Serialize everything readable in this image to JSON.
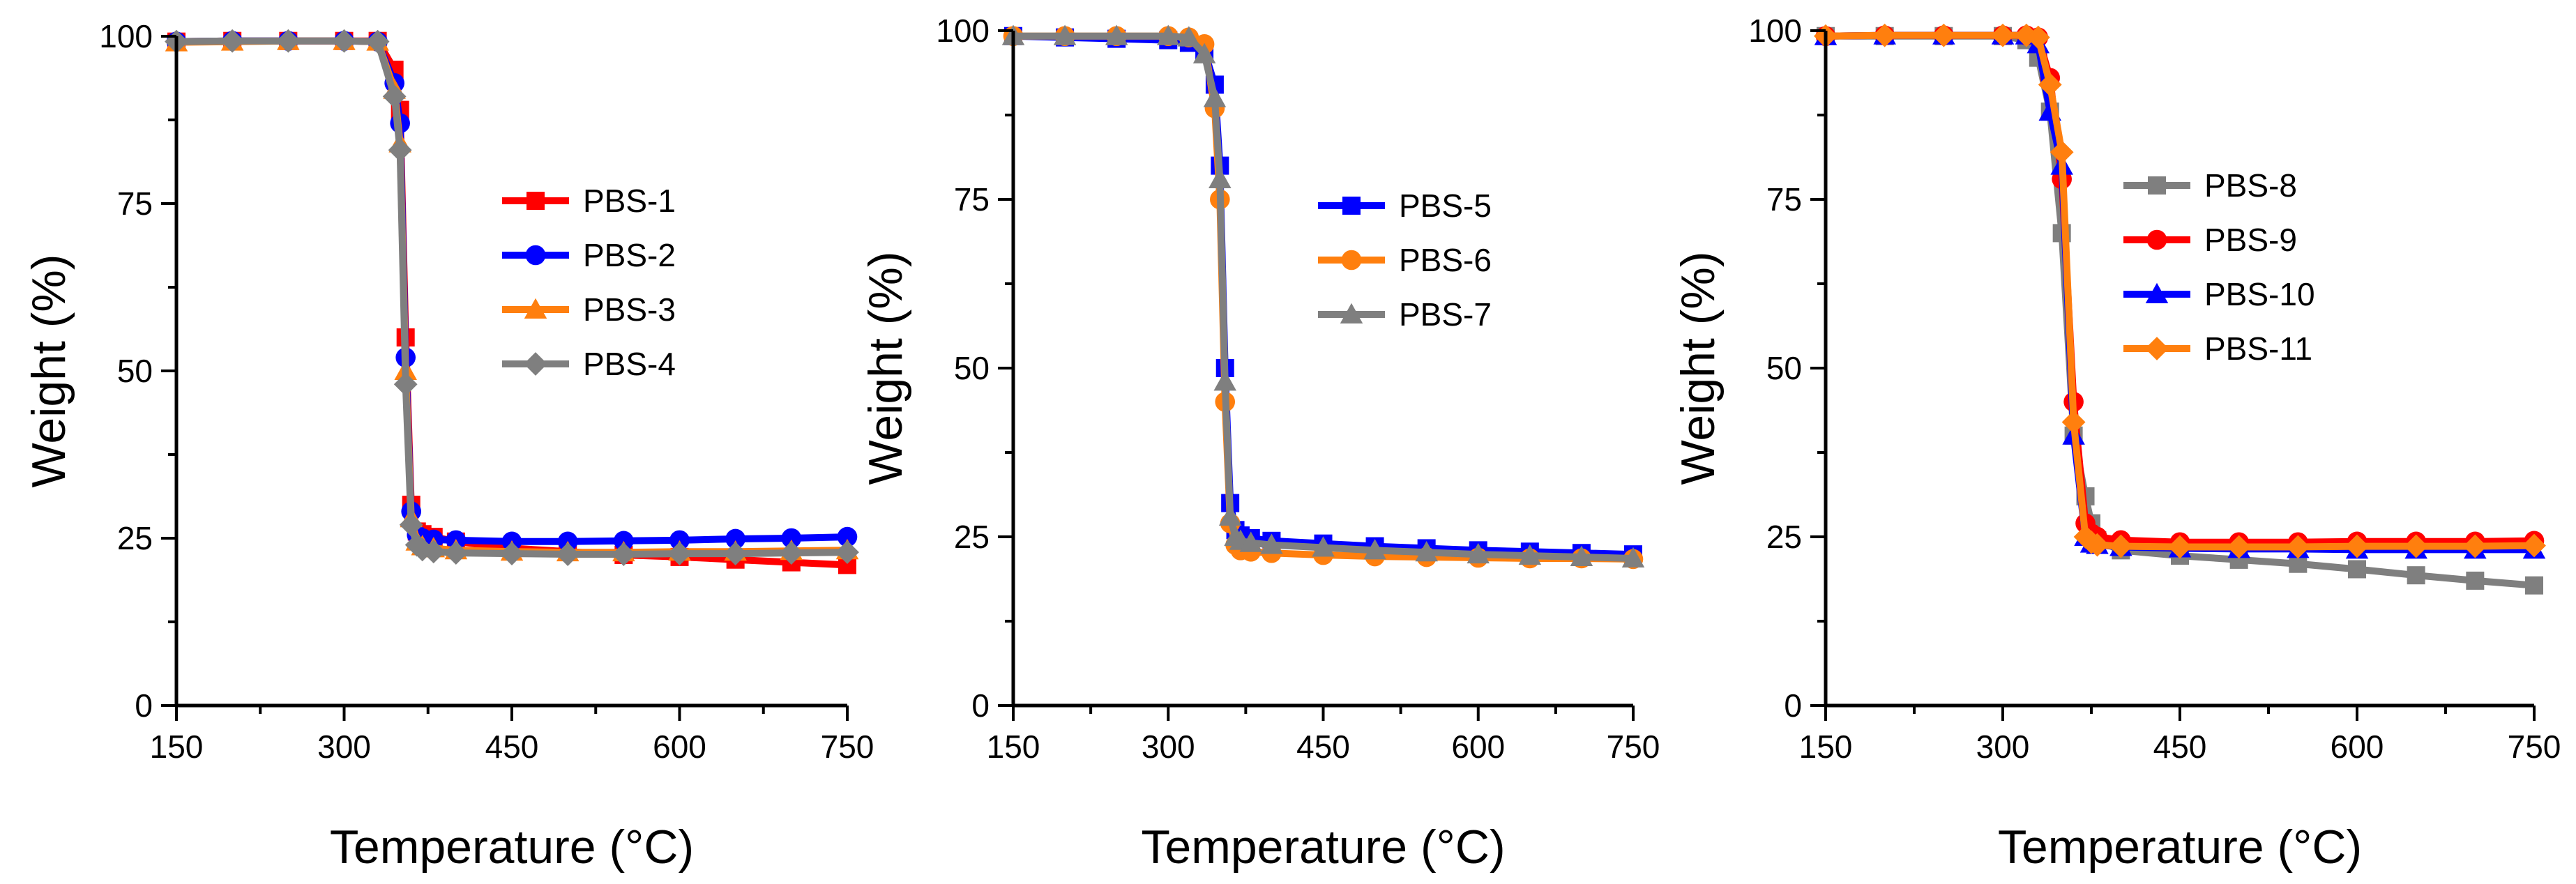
{
  "chart_data": [
    {
      "type": "line",
      "title": "",
      "xlabel": "Temperature (°C)",
      "ylabel": "Weight (%)",
      "xlim": [
        150,
        750
      ],
      "ylim": [
        0,
        100
      ],
      "xticks": [
        150,
        300,
        450,
        600,
        750
      ],
      "yticks": [
        0,
        25,
        50,
        75,
        100
      ],
      "grid": false,
      "legend_position": "center-right",
      "series": [
        {
          "name": "PBS-1",
          "color": "#ff0000",
          "marker": "square",
          "x": [
            150,
            200,
            250,
            300,
            330,
            345,
            350,
            355,
            360,
            365,
            370,
            380,
            400,
            450,
            500,
            550,
            600,
            650,
            700,
            750
          ],
          "y": [
            99.2,
            99.3,
            99.3,
            99.3,
            99.3,
            95,
            89,
            55,
            30,
            26,
            25.6,
            25.2,
            24.5,
            23.5,
            23,
            22.5,
            22.2,
            21.8,
            21.4,
            21
          ]
        },
        {
          "name": "PBS-2",
          "color": "#0000ff",
          "marker": "circle",
          "x": [
            150,
            200,
            250,
            300,
            330,
            345,
            350,
            355,
            360,
            365,
            370,
            380,
            400,
            450,
            500,
            550,
            600,
            650,
            700,
            750
          ],
          "y": [
            99.2,
            99.3,
            99.3,
            99.3,
            99.2,
            93,
            87,
            52,
            29,
            25.5,
            25,
            24.8,
            24.7,
            24.5,
            24.5,
            24.6,
            24.7,
            24.9,
            25,
            25.2
          ]
        },
        {
          "name": "PBS-3",
          "color": "#ff7f0e",
          "marker": "triangle",
          "x": [
            150,
            200,
            250,
            300,
            330,
            345,
            350,
            355,
            360,
            365,
            370,
            380,
            400,
            450,
            500,
            550,
            600,
            650,
            700,
            750
          ],
          "y": [
            99.1,
            99.2,
            99.3,
            99.3,
            99.2,
            92,
            84,
            50,
            28,
            24.5,
            23.8,
            23.5,
            23.2,
            23,
            22.9,
            22.9,
            23,
            23,
            23.1,
            23.2
          ]
        },
        {
          "name": "PBS-4",
          "color": "#7f7f7f",
          "marker": "diamond",
          "x": [
            150,
            200,
            250,
            300,
            330,
            345,
            350,
            355,
            360,
            365,
            370,
            380,
            400,
            450,
            500,
            550,
            600,
            650,
            700,
            750
          ],
          "y": [
            99.2,
            99.3,
            99.3,
            99.3,
            99.2,
            91,
            83,
            48,
            27,
            24,
            23.3,
            23,
            22.8,
            22.7,
            22.6,
            22.6,
            22.7,
            22.7,
            22.8,
            22.9
          ]
        }
      ]
    },
    {
      "type": "line",
      "title": "",
      "xlabel": "Temperature (°C)",
      "ylabel": "Weight (%)",
      "xlim": [
        150,
        750
      ],
      "ylim": [
        0,
        100
      ],
      "xticks": [
        150,
        300,
        450,
        600,
        750
      ],
      "yticks": [
        0,
        25,
        50,
        75,
        100
      ],
      "grid": false,
      "legend_position": "top-right",
      "series": [
        {
          "name": "PBS-5",
          "color": "#0000ff",
          "marker": "square",
          "x": [
            150,
            200,
            250,
            300,
            320,
            335,
            345,
            350,
            355,
            360,
            365,
            370,
            380,
            400,
            450,
            500,
            550,
            600,
            650,
            700,
            750
          ],
          "y": [
            99.2,
            99,
            98.8,
            98.6,
            98.2,
            97,
            92,
            80,
            50,
            30,
            26,
            25.2,
            24.8,
            24.4,
            24,
            23.6,
            23.3,
            23,
            22.8,
            22.6,
            22.4
          ]
        },
        {
          "name": "PBS-6",
          "color": "#ff7f0e",
          "marker": "circle",
          "x": [
            150,
            200,
            250,
            300,
            320,
            335,
            345,
            350,
            355,
            360,
            365,
            370,
            380,
            400,
            450,
            500,
            550,
            600,
            650,
            700,
            750
          ],
          "y": [
            99.2,
            99.2,
            99.2,
            99.2,
            99,
            98,
            88.5,
            75,
            45,
            27,
            23.8,
            23,
            22.8,
            22.6,
            22.3,
            22.1,
            22,
            21.9,
            21.8,
            21.8,
            21.7
          ]
        },
        {
          "name": "PBS-7",
          "color": "#7f7f7f",
          "marker": "triangle",
          "x": [
            150,
            200,
            250,
            300,
            320,
            335,
            345,
            350,
            355,
            360,
            365,
            370,
            380,
            400,
            450,
            500,
            550,
            600,
            650,
            700,
            750
          ],
          "y": [
            99.2,
            99.2,
            99.2,
            99.2,
            99,
            96.5,
            90,
            78,
            48,
            28,
            25,
            24.4,
            24.1,
            23.8,
            23.4,
            23,
            22.7,
            22.4,
            22.2,
            22,
            21.8
          ]
        }
      ]
    },
    {
      "type": "line",
      "title": "",
      "xlabel": "Temperature (°C)",
      "ylabel": "Weight (%)",
      "xlim": [
        150,
        750
      ],
      "ylim": [
        0,
        100
      ],
      "xticks": [
        150,
        300,
        450,
        600,
        750
      ],
      "yticks": [
        0,
        25,
        50,
        75,
        100
      ],
      "grid": false,
      "legend_position": "top-right",
      "series": [
        {
          "name": "PBS-8",
          "color": "#7f7f7f",
          "marker": "square",
          "x": [
            150,
            200,
            250,
            300,
            320,
            330,
            340,
            350,
            360,
            370,
            375,
            380,
            400,
            450,
            500,
            550,
            600,
            650,
            700,
            750
          ],
          "y": [
            99.2,
            99.2,
            99.2,
            99.2,
            98.6,
            96,
            88,
            70,
            40,
            31,
            27,
            24.5,
            23,
            22.2,
            21.6,
            21,
            20.2,
            19.3,
            18.5,
            17.8
          ]
        },
        {
          "name": "PBS-9",
          "color": "#ff0000",
          "marker": "circle",
          "x": [
            150,
            200,
            250,
            300,
            320,
            330,
            340,
            350,
            360,
            370,
            375,
            380,
            400,
            450,
            500,
            550,
            600,
            650,
            700,
            750
          ],
          "y": [
            99.2,
            99.3,
            99.3,
            99.3,
            99.3,
            99,
            93,
            78,
            45,
            27,
            25.5,
            25,
            24.5,
            24.2,
            24.2,
            24.2,
            24.3,
            24.3,
            24.3,
            24.4
          ]
        },
        {
          "name": "PBS-10",
          "color": "#0000ff",
          "marker": "triangle",
          "x": [
            150,
            200,
            250,
            300,
            320,
            330,
            340,
            350,
            360,
            370,
            375,
            380,
            400,
            450,
            500,
            550,
            600,
            650,
            700,
            750
          ],
          "y": [
            99.2,
            99.3,
            99.3,
            99.3,
            99.3,
            98,
            88,
            80,
            40,
            25,
            24,
            23.8,
            23.5,
            23.3,
            23.2,
            23.2,
            23.1,
            23.1,
            23.1,
            23.1
          ]
        },
        {
          "name": "PBS-11",
          "color": "#ff7f0e",
          "marker": "diamond",
          "x": [
            150,
            200,
            250,
            300,
            320,
            330,
            340,
            350,
            360,
            370,
            375,
            380,
            400,
            450,
            500,
            550,
            600,
            650,
            700,
            750
          ],
          "y": [
            99.2,
            99.3,
            99.3,
            99.3,
            99.3,
            99,
            92,
            82,
            42,
            25,
            24.2,
            23.8,
            23.6,
            23.5,
            23.5,
            23.5,
            23.6,
            23.6,
            23.6,
            23.7
          ]
        }
      ]
    }
  ]
}
